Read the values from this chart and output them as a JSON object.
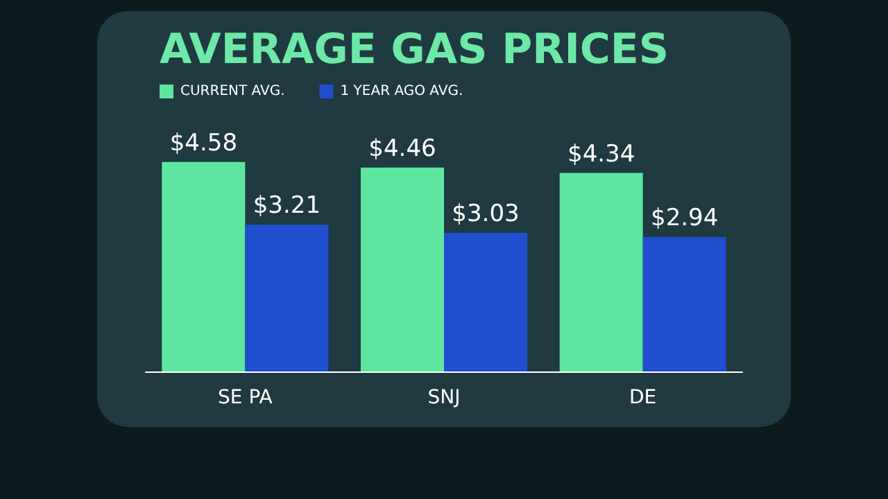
{
  "chart_data": {
    "type": "bar",
    "title": "AVERAGE GAS PRICES",
    "categories": [
      "SE PA",
      "SNJ",
      "DE"
    ],
    "series": [
      {
        "name": "CURRENT AVG.",
        "color": "#5ee6a0",
        "values": [
          4.58,
          4.46,
          4.34
        ],
        "value_labels": [
          "$4.58",
          "$4.46",
          "$4.34"
        ]
      },
      {
        "name": "1 YEAR AGO AVG.",
        "color": "#1f4fcf",
        "values": [
          3.21,
          3.03,
          2.94
        ],
        "value_labels": [
          "$3.21",
          "$3.03",
          "$2.94"
        ]
      }
    ],
    "legend": "top left"
  }
}
